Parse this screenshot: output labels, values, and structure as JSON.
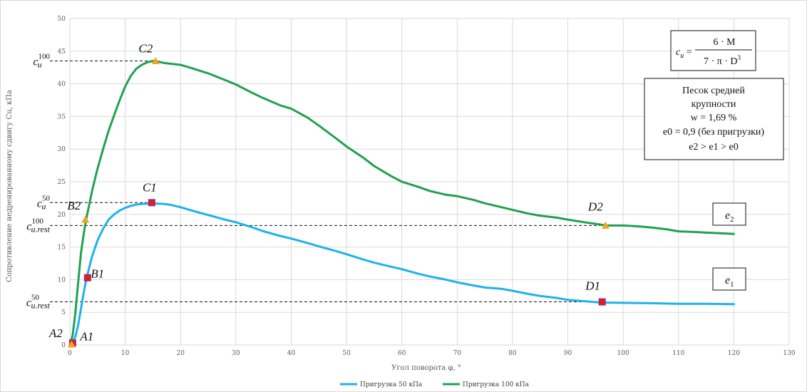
{
  "chart_data": {
    "type": "line",
    "xlabel": "Угол поворота φ, °",
    "ylabel": "Сопротивление недренированному сдвигу Cu, кПа",
    "xlim": [
      0,
      130
    ],
    "ylim": [
      0,
      50
    ],
    "xticks": [
      0,
      10,
      20,
      30,
      40,
      50,
      60,
      70,
      80,
      90,
      100,
      110,
      120,
      130
    ],
    "yticks": [
      0,
      5,
      10,
      15,
      20,
      25,
      30,
      35,
      40,
      45,
      50
    ],
    "grid": true,
    "legend_position": "bottom",
    "series": [
      {
        "name": "Пригрузка 50 кПа",
        "color": "#1fb2ea",
        "x": [
          0,
          0.5,
          1,
          1.5,
          2,
          2.5,
          3,
          4,
          5,
          6,
          7,
          8,
          9,
          10,
          11,
          12,
          13,
          14,
          15,
          16,
          17,
          18,
          20,
          22,
          25,
          28,
          30,
          33,
          35,
          38,
          40,
          43,
          45,
          48,
          50,
          53,
          55,
          58,
          60,
          63,
          65,
          68,
          70,
          73,
          75,
          78,
          80,
          83,
          85,
          88,
          90,
          93,
          96,
          100,
          105,
          110,
          115,
          120
        ],
        "y": [
          0,
          0.4,
          1.3,
          3,
          5.5,
          8,
          10.2,
          13.5,
          16,
          17.8,
          19.2,
          20,
          20.6,
          21,
          21.3,
          21.5,
          21.6,
          21.65,
          21.7,
          21.65,
          21.6,
          21.5,
          21.1,
          20.6,
          19.9,
          19.2,
          18.8,
          18.0,
          17.4,
          16.7,
          16.3,
          15.6,
          15.1,
          14.4,
          13.9,
          13.1,
          12.6,
          12.0,
          11.6,
          10.9,
          10.5,
          10.0,
          9.6,
          9.1,
          8.8,
          8.6,
          8.3,
          7.8,
          7.5,
          7.2,
          6.9,
          6.7,
          6.5,
          6.45,
          6.4,
          6.3,
          6.3,
          6.25
        ]
      },
      {
        "name": "Пригрузка 100 кПа",
        "color": "#21a150",
        "x": [
          0,
          0.5,
          1,
          1.5,
          2,
          2.5,
          3,
          3.5,
          4,
          4.5,
          5,
          5.5,
          6,
          7,
          8,
          9,
          10,
          11,
          12,
          13,
          14,
          15,
          16,
          17,
          18,
          19,
          20,
          22,
          25,
          28,
          30,
          33,
          35,
          38,
          40,
          43,
          45,
          48,
          50,
          53,
          55,
          58,
          60,
          63,
          65,
          68,
          70,
          73,
          75,
          78,
          80,
          83,
          85,
          88,
          90,
          93,
          97,
          100,
          103,
          105,
          108,
          110,
          113,
          115,
          118,
          120
        ],
        "y": [
          0,
          1.5,
          5,
          9.5,
          14,
          17,
          19.5,
          21.5,
          23.5,
          25.3,
          27,
          28.5,
          30,
          32.8,
          35.2,
          37.5,
          39.6,
          41.2,
          42.3,
          42.9,
          43.3,
          43.5,
          43.4,
          43.2,
          43.1,
          43.0,
          42.9,
          42.4,
          41.6,
          40.6,
          39.9,
          38.6,
          37.8,
          36.7,
          36.2,
          34.8,
          33.6,
          31.7,
          30.4,
          28.7,
          27.4,
          25.9,
          25.0,
          24.2,
          23.6,
          23.0,
          22.8,
          22.2,
          21.7,
          21.1,
          20.7,
          20.1,
          19.8,
          19.5,
          19.2,
          18.8,
          18.3,
          18.3,
          18.15,
          18.0,
          17.7,
          17.4,
          17.3,
          17.2,
          17.1,
          17.0
        ]
      }
    ],
    "markers": [
      {
        "label": "A1",
        "x": 0.5,
        "y": 0.3,
        "shape": "square",
        "color": "#e41c1c"
      },
      {
        "label": "B1",
        "x": 3.2,
        "y": 10.3,
        "shape": "square",
        "color": "#e41c1c"
      },
      {
        "label": "C1",
        "x": 14.8,
        "y": 21.8,
        "shape": "square",
        "color": "#e41c1c"
      },
      {
        "label": "D1",
        "x": 96.2,
        "y": 6.6,
        "shape": "square",
        "color": "#e41c1c"
      },
      {
        "label": "A2",
        "x": 0.3,
        "y": 0.1,
        "shape": "triangle",
        "color": "#f5a31a"
      },
      {
        "label": "B2",
        "x": 2.8,
        "y": 19.2,
        "shape": "triangle",
        "color": "#f5a31a"
      },
      {
        "label": "C2",
        "x": 15.5,
        "y": 43.5,
        "shape": "triangle",
        "color": "#f5a31a"
      },
      {
        "label": "D2",
        "x": 96.8,
        "y": 18.3,
        "shape": "triangle",
        "color": "#f5a31a"
      }
    ],
    "reference_lines": [
      {
        "y": 43.5,
        "x_end": 15.5,
        "main": "c",
        "sub": "u",
        "sup": "100"
      },
      {
        "y": 21.8,
        "x_end": 14.8,
        "main": "c",
        "sub": "u",
        "sup": "50"
      },
      {
        "y": 18.3,
        "x_end": 96.8,
        "main": "c",
        "sub": "u.rest",
        "sup": "100"
      },
      {
        "y": 6.6,
        "x_end": 96.2,
        "main": "c",
        "sub": "u.rest",
        "sup": "50"
      }
    ],
    "curve_labels": [
      {
        "series_index": 1,
        "main": "e",
        "sub": "2"
      },
      {
        "series_index": 0,
        "main": "e",
        "sub": "1"
      }
    ],
    "formula": {
      "lhs_main": "c",
      "lhs_sub": "u",
      "numerator": "6 · M",
      "denominator": "7 · π · D",
      "denominator_power": "3"
    },
    "info_box": {
      "line1": "Песок средней",
      "line2": "крупности",
      "line3": "w = 1,69 %",
      "line4": "e0 = 0,9 (без пригрузки)",
      "line5": "e2 > e1 > e0"
    }
  }
}
